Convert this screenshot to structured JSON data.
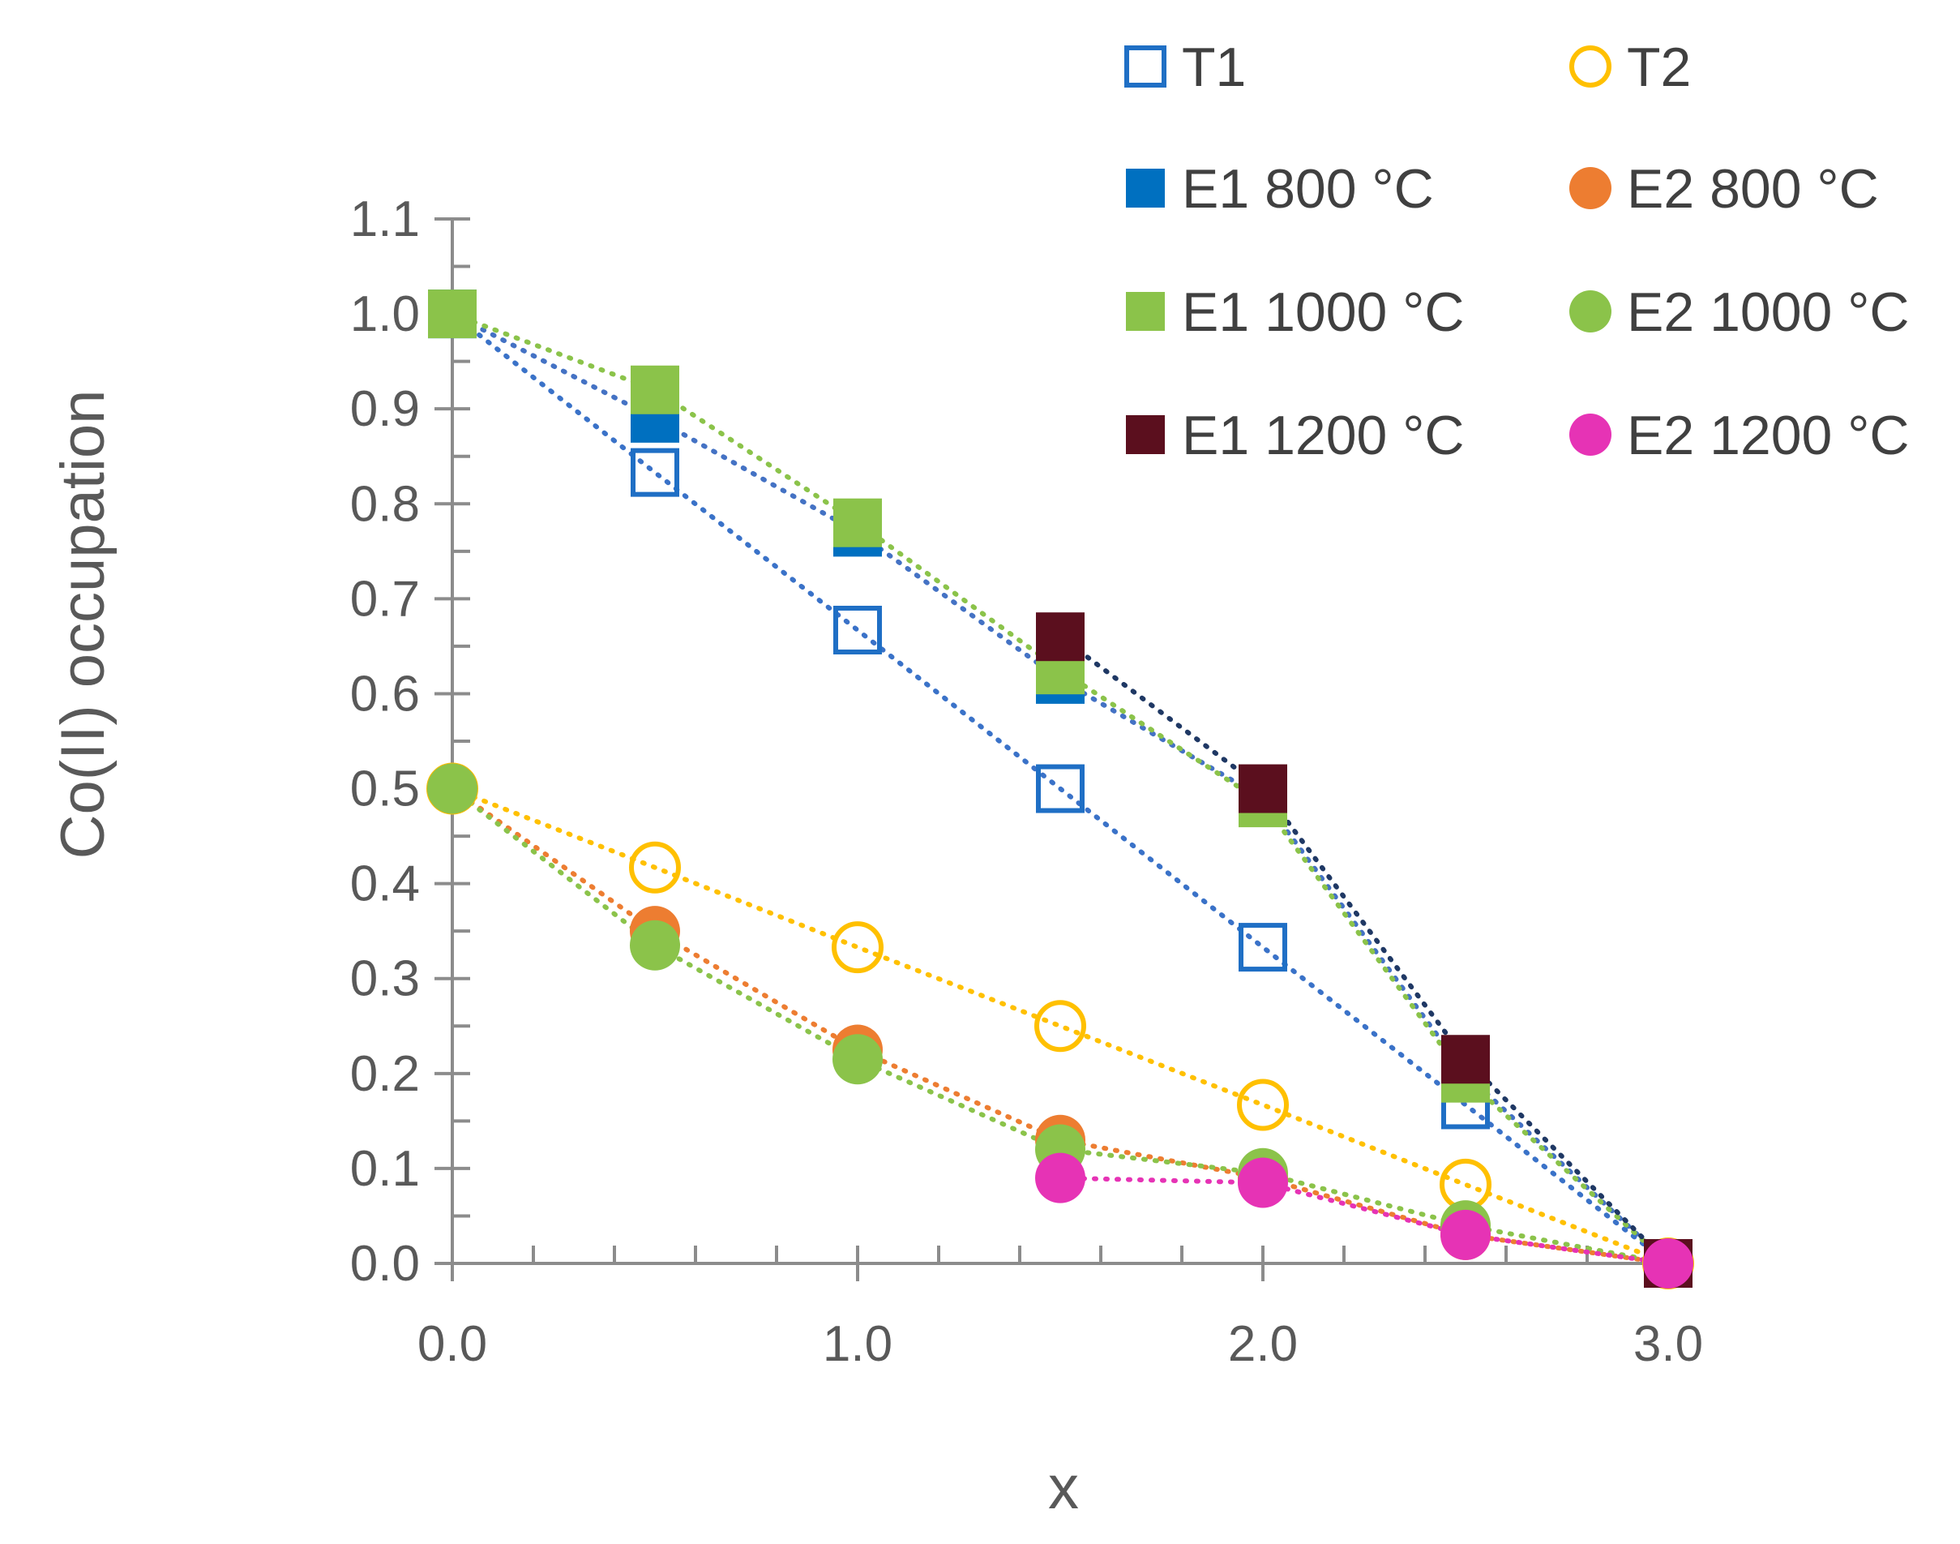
{
  "chart_data": {
    "type": "scatter",
    "title": "",
    "xlabel": "x",
    "ylabel": "Co(II) occupation",
    "xlim": [
      0,
      3
    ],
    "ylim": [
      0,
      1.1
    ],
    "x_ticks": [
      "0.0",
      "1.0",
      "2.0",
      "3.0"
    ],
    "y_ticks": [
      "0.0",
      "0.1",
      "0.2",
      "0.3",
      "0.4",
      "0.5",
      "0.6",
      "0.7",
      "0.8",
      "0.9",
      "1.0",
      "1.1"
    ],
    "legend_position": "top-right",
    "series": [
      {
        "name": "T1",
        "marker": "square",
        "filled": false,
        "color": "#1F6FC5",
        "line_color": "#3A72C8",
        "points": [
          [
            0,
            1.0
          ],
          [
            0.5,
            0.833
          ],
          [
            1.0,
            0.667
          ],
          [
            1.5,
            0.5
          ],
          [
            2.0,
            0.333
          ],
          [
            2.5,
            0.167
          ],
          [
            3.0,
            0.0
          ]
        ]
      },
      {
        "name": "T2",
        "marker": "circle",
        "filled": false,
        "color": "#FFC000",
        "line_color": "#FFC000",
        "points": [
          [
            0,
            0.5
          ],
          [
            0.5,
            0.417
          ],
          [
            1.0,
            0.333
          ],
          [
            1.5,
            0.25
          ],
          [
            2.0,
            0.167
          ],
          [
            2.5,
            0.083
          ],
          [
            3.0,
            0.0
          ]
        ]
      },
      {
        "name": "E1 800 °C",
        "marker": "square",
        "filled": true,
        "color": "#0070C0",
        "line_color": "#4472C4",
        "points": [
          [
            0,
            1.0
          ],
          [
            0.5,
            0.89
          ],
          [
            1.0,
            0.77
          ],
          [
            1.5,
            0.615
          ],
          [
            2.0,
            0.49
          ],
          [
            2.5,
            0.2
          ],
          [
            3.0,
            0.0
          ]
        ]
      },
      {
        "name": "E2 800 °C",
        "marker": "circle",
        "filled": true,
        "color": "#ED7D31",
        "line_color": "#ED7D31",
        "points": [
          [
            0,
            0.5
          ],
          [
            0.5,
            0.35
          ],
          [
            1.0,
            0.225
          ],
          [
            1.5,
            0.13
          ],
          [
            2.0,
            0.09
          ],
          [
            2.5,
            0.03
          ],
          [
            3.0,
            0.0
          ]
        ]
      },
      {
        "name": "E1 1000 °C",
        "marker": "square",
        "filled": true,
        "color": "#8BC34A",
        "line_color": "#8BC34A",
        "points": [
          [
            0,
            1.0
          ],
          [
            0.5,
            0.92
          ],
          [
            1.0,
            0.78
          ],
          [
            1.5,
            0.625
          ],
          [
            2.0,
            0.485
          ],
          [
            2.5,
            0.195
          ],
          [
            3.0,
            0.0
          ]
        ]
      },
      {
        "name": "E2 1000 °C",
        "marker": "circle",
        "filled": true,
        "color": "#8BC34A",
        "line_color": "#8BC34A",
        "points": [
          [
            0,
            0.5
          ],
          [
            0.5,
            0.335
          ],
          [
            1.0,
            0.215
          ],
          [
            1.5,
            0.12
          ],
          [
            2.0,
            0.095
          ],
          [
            2.5,
            0.04
          ],
          [
            3.0,
            0.0
          ]
        ]
      },
      {
        "name": "E1 1200 °C",
        "marker": "square",
        "filled": true,
        "color": "#5B0F1E",
        "line_color": "#1F3864",
        "points": [
          [
            1.5,
            0.66
          ],
          [
            2.0,
            0.5
          ],
          [
            2.5,
            0.215
          ],
          [
            3.0,
            0.0
          ]
        ]
      },
      {
        "name": "E2 1200 °C",
        "marker": "circle",
        "filled": true,
        "color": "#E633B5",
        "line_color": "#E633B5",
        "points": [
          [
            1.5,
            0.09
          ],
          [
            2.0,
            0.085
          ],
          [
            2.5,
            0.03
          ],
          [
            3.0,
            0.0
          ]
        ]
      }
    ]
  }
}
